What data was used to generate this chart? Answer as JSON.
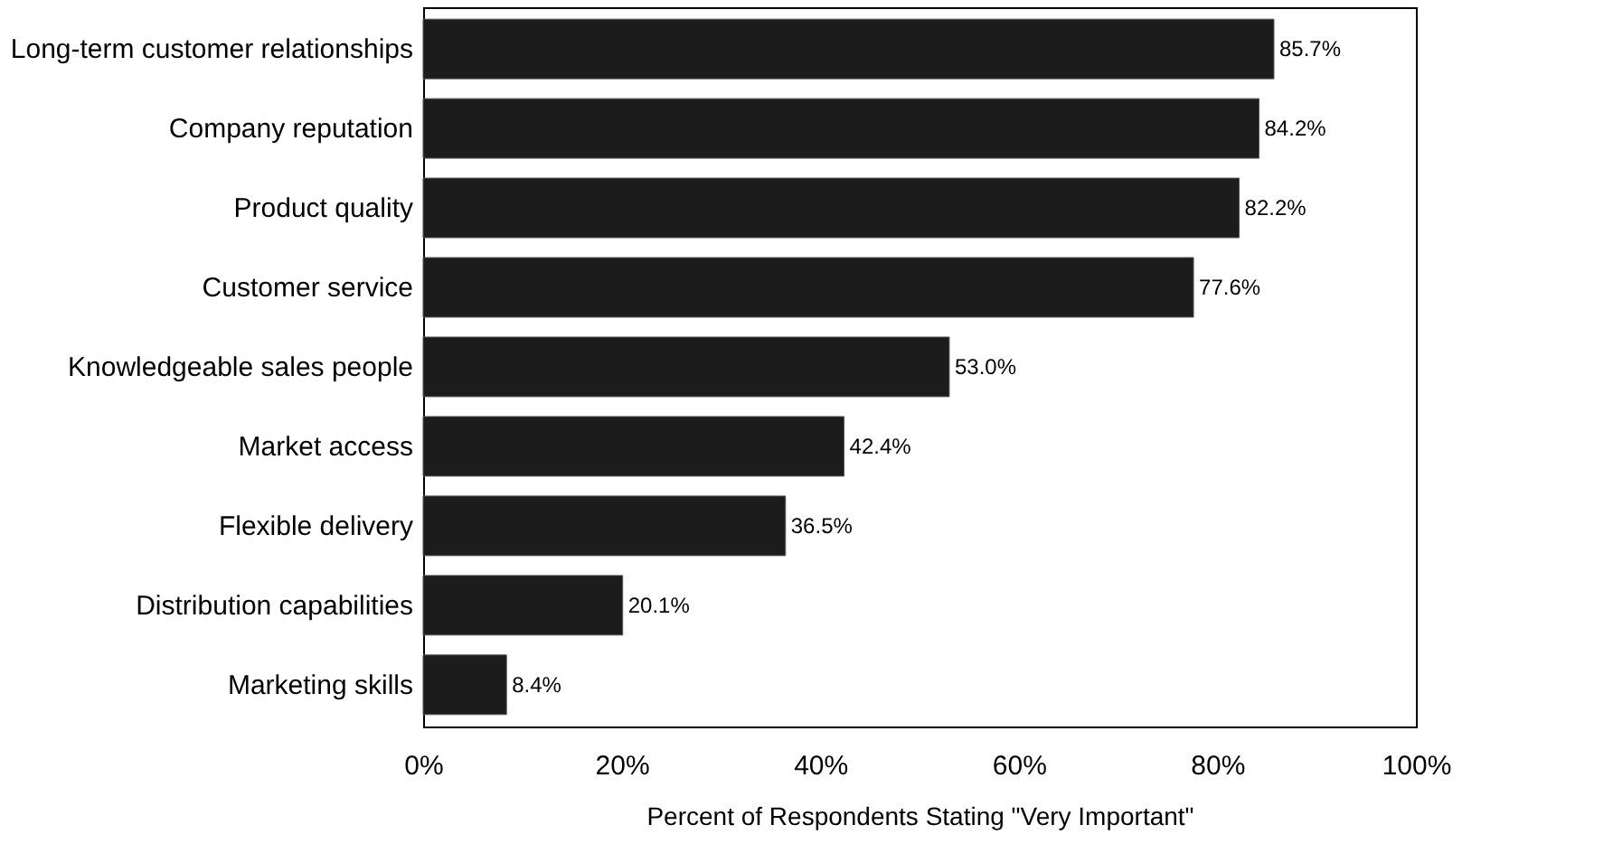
{
  "chart_data": {
    "type": "bar",
    "orientation": "horizontal",
    "xlabel": "Percent of Respondents Stating \"Very Important\"",
    "categories": [
      "Long-term customer relationships",
      "Company reputation",
      "Product quality",
      "Customer service",
      "Knowledgeable sales people",
      "Market access",
      "Flexible delivery",
      "Distribution capabilities",
      "Marketing skills"
    ],
    "values": [
      85.7,
      84.2,
      82.2,
      77.6,
      53.0,
      42.4,
      36.5,
      20.1,
      8.4
    ],
    "value_labels": [
      "85.7%",
      "84.2%",
      "82.2%",
      "77.6%",
      "53.0%",
      "42.4%",
      "36.5%",
      "20.1%",
      "8.4%"
    ],
    "color": "#1c1c1c",
    "xlim": [
      0,
      100
    ],
    "xticks": [
      {
        "value": 0,
        "label": "0%"
      },
      {
        "value": 20,
        "label": "20%"
      },
      {
        "value": 40,
        "label": "40%"
      },
      {
        "value": 60,
        "label": "60%"
      },
      {
        "value": 80,
        "label": "80%"
      },
      {
        "value": 100,
        "label": "100%"
      }
    ],
    "grid": false
  }
}
